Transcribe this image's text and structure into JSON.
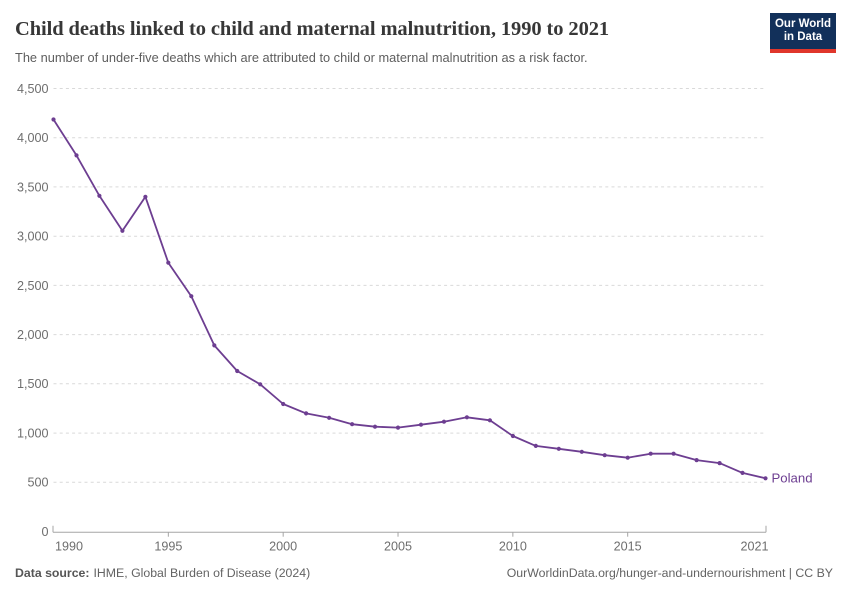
{
  "header": {
    "title": "Child deaths linked to child and maternal malnutrition, 1990 to 2021",
    "subtitle": "The number of under-five deaths which are attributed to child or maternal malnutrition as a risk factor.",
    "logo": {
      "line1": "Our World",
      "line2": "in Data",
      "bg_color": "#12305a",
      "stripe_color": "#e0362b"
    }
  },
  "chart_data": {
    "type": "line",
    "title": "Child deaths linked to child and maternal malnutrition, 1990 to 2021",
    "xlabel": "",
    "ylabel": "",
    "xlim": [
      1990,
      2021
    ],
    "ylim": [
      0,
      4500
    ],
    "ytick_step": 500,
    "xticks": [
      1990,
      1995,
      2000,
      2005,
      2010,
      2015,
      2021
    ],
    "grid": "horizontal-dashed",
    "legend_position": "end-of-line-label",
    "series": [
      {
        "name": "Poland",
        "color": "#6d3e91",
        "years": [
          1990,
          1991,
          1992,
          1993,
          1994,
          1995,
          1996,
          1997,
          1998,
          1999,
          2000,
          2001,
          2002,
          2003,
          2004,
          2005,
          2006,
          2007,
          2008,
          2009,
          2010,
          2011,
          2012,
          2013,
          2014,
          2015,
          2016,
          2017,
          2018,
          2019,
          2020,
          2021
        ],
        "values": [
          4185,
          3820,
          3410,
          3055,
          3400,
          2730,
          2390,
          1890,
          1630,
          1495,
          1295,
          1200,
          1155,
          1090,
          1065,
          1055,
          1085,
          1115,
          1160,
          1130,
          970,
          870,
          840,
          810,
          775,
          750,
          790,
          790,
          725,
          695,
          595,
          540
        ]
      }
    ]
  },
  "footer": {
    "datasource_label": "Data source:",
    "datasource_value": "IHME, Global Burden of Disease (2024)",
    "credit": "OurWorldinData.org/hunger-and-undernourishment | CC BY"
  }
}
